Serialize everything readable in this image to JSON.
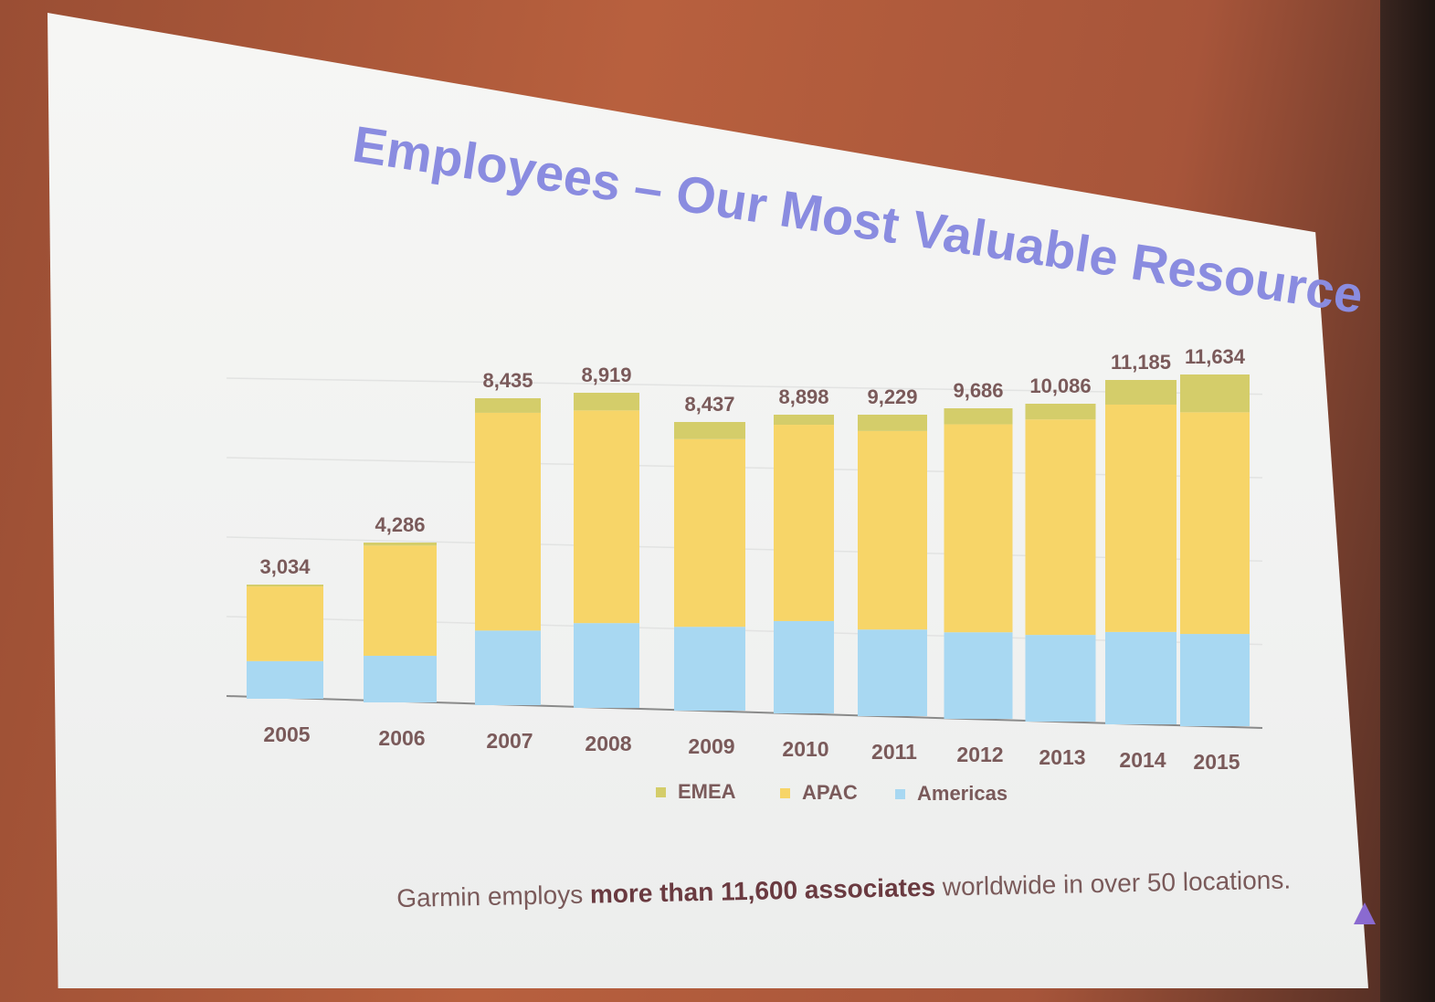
{
  "title": "Employees – Our Most Valuable Resource",
  "footnote": {
    "prefix": "Garmin employs ",
    "bold": "more than 11,600 associates",
    "suffix": " worldwide in over 50 locations."
  },
  "colors": {
    "emea": "#d4cd6a",
    "apac": "#f7d568",
    "americas": "#a8d8f2",
    "title": "#8a8ce0",
    "label": "#7a5a5a"
  },
  "chart_data": {
    "type": "bar",
    "stacked": true,
    "categories": [
      "2005",
      "2006",
      "2007",
      "2008",
      "2009",
      "2010",
      "2011",
      "2012",
      "2013",
      "2014",
      "2015"
    ],
    "totals_labels": [
      "3,034",
      "4,286",
      "8,435",
      "8,919",
      "8,437",
      "8,898",
      "9,229",
      "9,686",
      "10,086",
      "11,185",
      "11,634"
    ],
    "series": [
      {
        "name": "Americas",
        "color": "#a8d8f2",
        "values": [
          1000,
          1250,
          2050,
          2400,
          2450,
          2750,
          2650,
          2700,
          2750,
          3000,
          3050
        ]
      },
      {
        "name": "APAC",
        "color": "#f7d568",
        "values": [
          1984,
          2956,
          5985,
          6019,
          5487,
          5848,
          6079,
          6486,
          6836,
          7385,
          7334
        ]
      },
      {
        "name": "EMEA",
        "color": "#d4cd6a",
        "values": [
          50,
          80,
          400,
          500,
          500,
          300,
          500,
          500,
          500,
          800,
          1250
        ]
      }
    ],
    "legend": [
      "EMEA",
      "APAC",
      "Americas"
    ],
    "legend_position": "bottom",
    "ylim": [
      0,
      12000
    ],
    "grid": true
  }
}
